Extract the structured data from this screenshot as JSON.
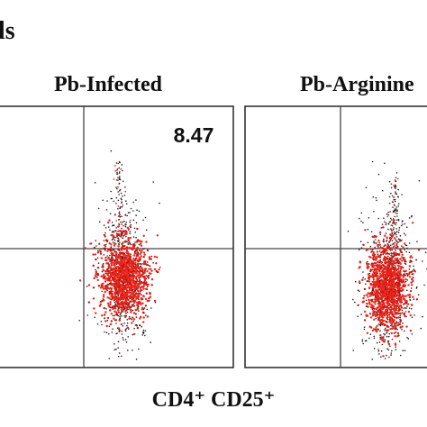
{
  "figure": {
    "corner_text": "ls",
    "x_axis_label": "CD4⁺ CD25⁺"
  },
  "panels": [
    {
      "title": "Pb-Infected",
      "quadrant_value": "8.47"
    },
    {
      "title": "Pb-Argininе",
      "quadrant_value": ""
    }
  ],
  "chart_data": [
    {
      "type": "scatter",
      "title": "Pb-Infected",
      "xlabel": "CD4⁺ CD25⁺",
      "ylabel": "",
      "quadrant_annotations": [
        {
          "quadrant": "upper-right",
          "value": 8.47
        }
      ],
      "populations": [
        {
          "shape": "dense-core-with-upward-tail",
          "quadrant": "lower-right (extends into upper-right)"
        }
      ],
      "point_colors": {
        "core": "#e8261c",
        "dense": "#c01510",
        "sparse": "#2a1a1a"
      },
      "grid": false
    },
    {
      "type": "scatter",
      "title": "Pb-Argininе",
      "xlabel": "CD4⁺ CD25⁺",
      "ylabel": "",
      "quadrant_annotations": [],
      "populations": [
        {
          "shape": "dense-core-with-upward-tail",
          "quadrant": "lower-right (extends into upper-right)"
        }
      ],
      "point_colors": {
        "core": "#e8261c",
        "dense": "#c01510",
        "sparse": "#2a1a1a"
      },
      "grid": false
    }
  ]
}
